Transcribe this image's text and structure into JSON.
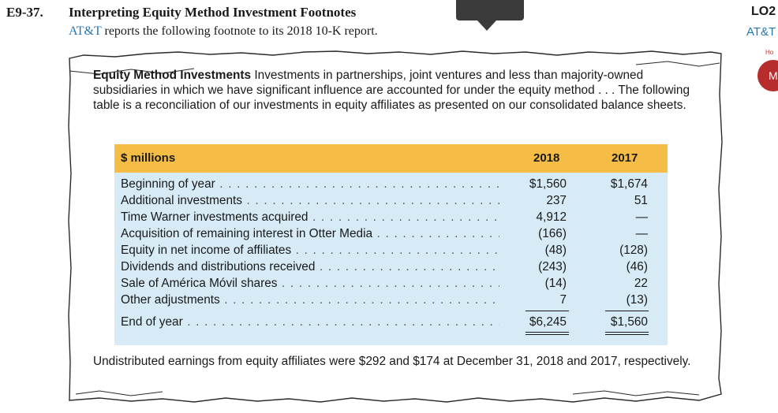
{
  "exercise": {
    "number": "E9-37.",
    "title": "Interpreting Equity Method Investment Footnotes",
    "company": "AT&T",
    "intro_rest": " reports the following footnote to its 2018 10-K report."
  },
  "side": {
    "lo_label": "LO2",
    "company": "AT&T",
    "hint": "Ho",
    "badge": "M"
  },
  "note": {
    "heading": "Equity Method Investments",
    "body": "Investments in partnerships, joint ventures and less than majority-owned subsidiaries in which we have significant influence are accounted for under the equity method . . . The following table is a reconciliation of our investments in equity affiliates as presented on our consolidated balance sheets.",
    "footer": "Undistributed earnings from equity affiliates were $292 and $174 at December 31, 2018 and 2017, respectively."
  },
  "table": {
    "header": {
      "label": "$ millions",
      "col1": "2018",
      "col2": "2017"
    },
    "rows": [
      {
        "label": "Beginning of year",
        "v2018": "$1,560",
        "v2017": "$1,674"
      },
      {
        "label": "Additional investments",
        "v2018": "237",
        "v2017": "51"
      },
      {
        "label": "Time Warner investments acquired",
        "v2018": "4,912",
        "v2017": "—"
      },
      {
        "label": "Acquisition of remaining interest in Otter Media",
        "v2018": "(166)",
        "v2017": "—"
      },
      {
        "label": "Equity in net income of affiliates",
        "v2018": "(48)",
        "v2017": "(128)"
      },
      {
        "label": "Dividends and distributions received",
        "v2018": "(243)",
        "v2017": "(46)"
      },
      {
        "label": "Sale of América Móvil shares",
        "v2018": "(14)",
        "v2017": "22"
      },
      {
        "label": "Other adjustments",
        "v2018": "7",
        "v2017": "(13)"
      }
    ],
    "total": {
      "label": "End of year",
      "v2018": "$6,245",
      "v2017": "$1,560"
    }
  }
}
